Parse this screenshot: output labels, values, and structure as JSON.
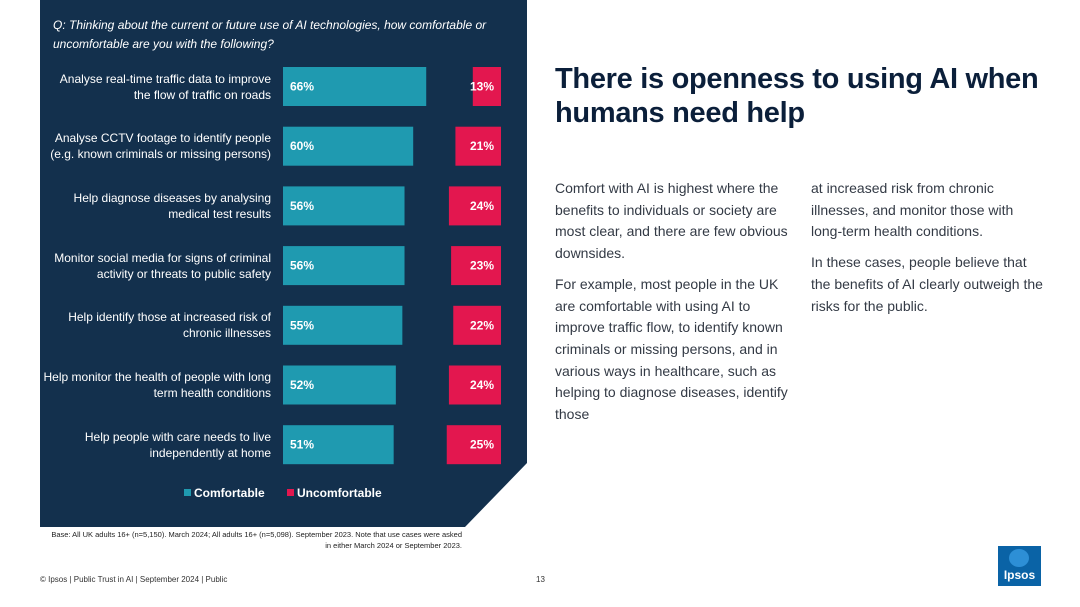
{
  "question": "Q: Thinking about the current or future use of AI technologies, how comfortable or uncomfortable are you with the following?",
  "colors": {
    "panel": "#13304d",
    "comfortable": "#1f9ab0",
    "uncomfortable": "#e3174f"
  },
  "chart_data": {
    "type": "bar",
    "orientation": "diverging-horizontal",
    "categories": [
      "Analyse real-time traffic data to improve the flow of traffic on roads",
      "Analyse CCTV footage to identify people (e.g. known criminals or missing persons)",
      "Help diagnose diseases by analysing medical test results",
      "Monitor social media for signs of criminal activity or threats to public safety",
      "Help identify those at increased risk of chronic illnesses",
      "Help monitor the health of people with long term health conditions",
      "Help people with care needs to live independently at home"
    ],
    "series": [
      {
        "name": "Comfortable",
        "values": [
          66,
          60,
          56,
          56,
          55,
          52,
          51
        ],
        "labels": [
          "66%",
          "60%",
          "56%",
          "56%",
          "55%",
          "52%",
          "51%"
        ]
      },
      {
        "name": "Uncomfortable",
        "values": [
          13,
          21,
          24,
          23,
          22,
          24,
          25
        ],
        "labels": [
          "13%",
          "21%",
          "24%",
          "23%",
          "22%",
          "24%",
          "25%"
        ]
      }
    ],
    "unit": "%",
    "legend": [
      "Comfortable",
      "Uncomfortable"
    ],
    "legend_position": "bottom"
  },
  "base_note": "Base: All UK adults 16+ (n=5,150). March 2024; All adults 16+ (n=5,098). September 2023. Note that use cases were asked in either March 2024 or September 2023.",
  "title": "There is openness to using AI when humans need help",
  "body": {
    "p1": "Comfort with AI is highest where the benefits to individuals or society are most clear, and there are few obvious downsides.",
    "p2": "For example, most people in the UK are comfortable with using AI to improve traffic flow, to identify known criminals or missing persons, and in various ways in healthcare, such as helping to diagnose diseases, identify those",
    "p3": "at increased risk from chronic illnesses, and monitor those with long-term health conditions.",
    "p4": "In these cases, people believe that the benefits of AI clearly outweigh the risks for the public."
  },
  "footer": "© Ipsos | Public Trust in AI | September 2024 | Public",
  "page_number": "13",
  "logo_text": "Ipsos"
}
